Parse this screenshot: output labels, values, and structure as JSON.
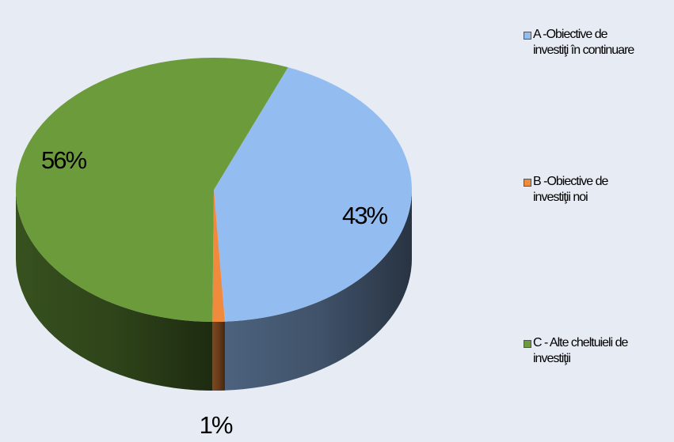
{
  "chart_data": {
    "type": "pie",
    "categories": [
      "A -Obiective de\ninvestiţi în continuare",
      "B -Obiective de\ninvestiţii noi",
      "C - Alte cheltuieli de\ninvestiţii"
    ],
    "values": [
      43,
      1,
      56
    ],
    "value_labels": [
      "43%",
      "1%",
      "56%"
    ],
    "colors": [
      "#93bdf0",
      "#f08a3c",
      "#6b9b3b"
    ],
    "legend": "right"
  }
}
